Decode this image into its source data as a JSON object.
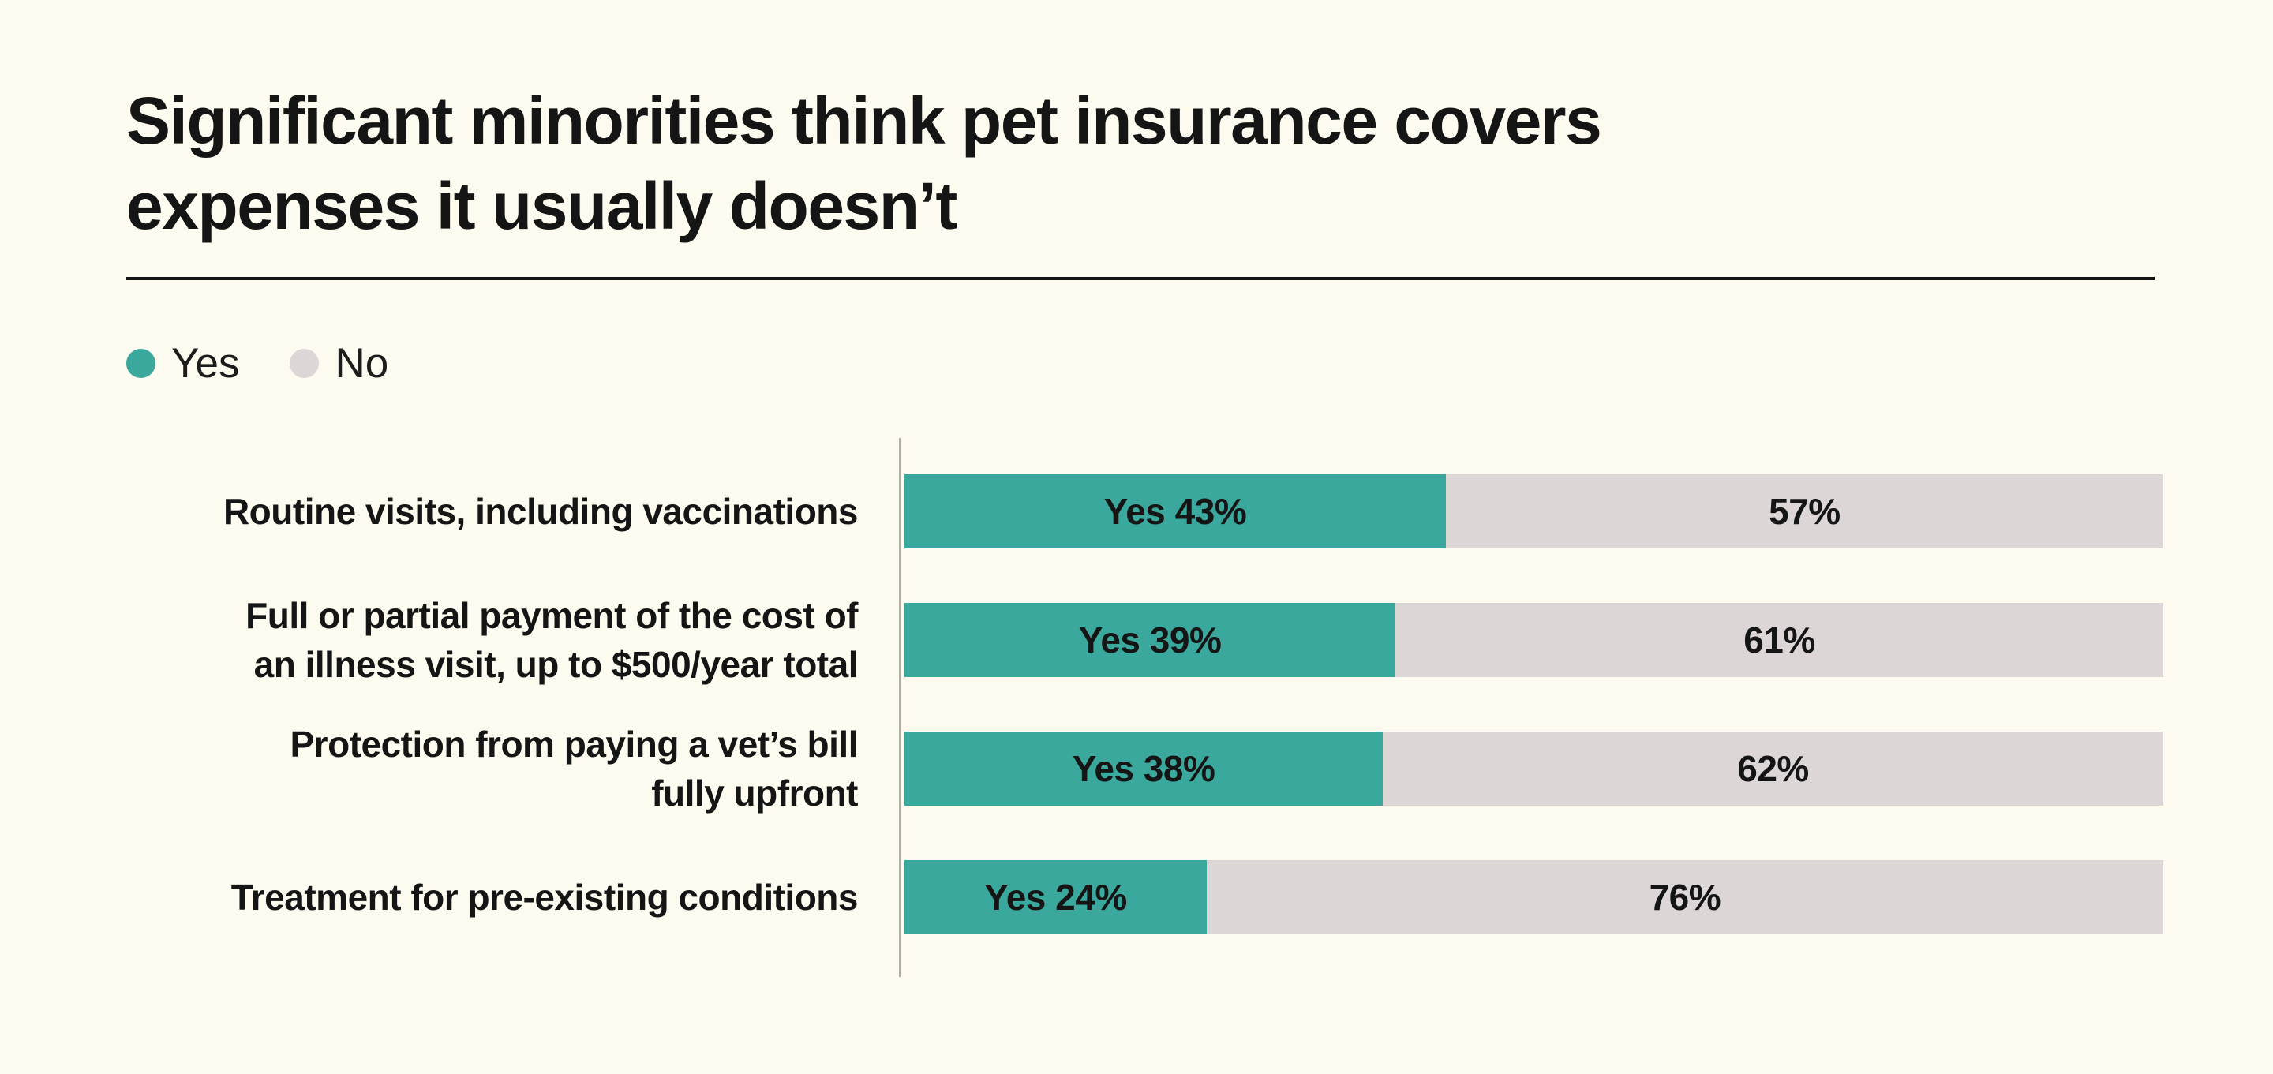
{
  "page": {
    "title_display": "Significant minorities think pet insurance covers\nexpenses it usually doesn’t",
    "background_color": "#FDFBEF",
    "title_color": "#151515",
    "divider_color": "#141414",
    "axis_line_color": "#B3AFA7"
  },
  "legend": {
    "items": [
      {
        "label": "Yes",
        "color": "#3AA89C"
      },
      {
        "label": "No",
        "color": "#DCD6D7"
      }
    ]
  },
  "chart_data": {
    "type": "bar",
    "orientation": "horizontal",
    "stacked": true,
    "title": "Significant minorities think pet insurance covers expenses it usually doesn’t",
    "categories": [
      "Routine visits, including vaccinations",
      "Full or partial payment of the cost of\nan illness visit, up to $500/year total",
      "Protection from paying a vet’s bill\nfully upfront",
      "Treatment for pre-existing conditions"
    ],
    "series": [
      {
        "name": "Yes",
        "color": "#3AA89C",
        "values": [
          43,
          39,
          38,
          24
        ]
      },
      {
        "name": "No",
        "color": "#DCD6D7",
        "values": [
          57,
          61,
          62,
          76
        ]
      }
    ],
    "segment_labels": [
      [
        "Yes 43%",
        "57%"
      ],
      [
        "Yes 39%",
        "61%"
      ],
      [
        "Yes 38%",
        "62%"
      ],
      [
        "Yes 24%",
        "76%"
      ]
    ],
    "xlim": [
      0,
      100
    ],
    "unit": "%",
    "grid": false,
    "legend_position": "top-left",
    "value_label_position": "centered-in-segment"
  }
}
